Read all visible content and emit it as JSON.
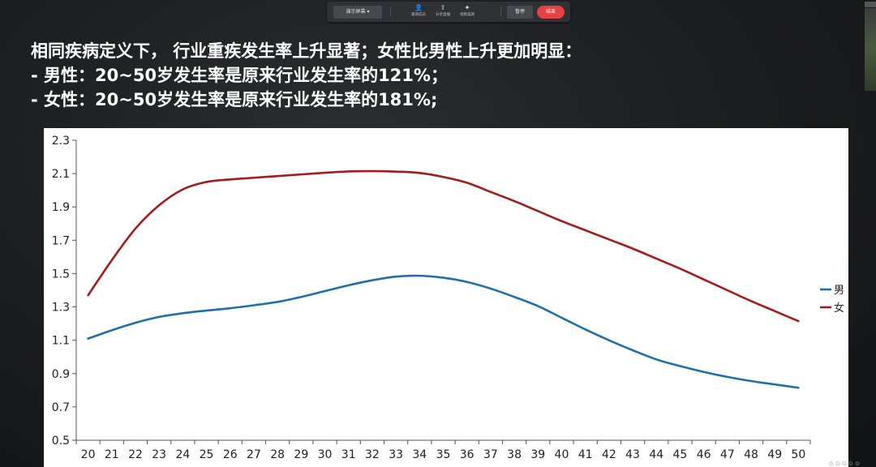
{
  "toolbar": {
    "share_screen_label": "演示屏幕 ▾",
    "tools": [
      {
        "icon": "person-plus-icon",
        "glyph": "👤",
        "label": "邀请成员"
      },
      {
        "icon": "share-icon",
        "glyph": "⇪",
        "label": "分享直播"
      },
      {
        "icon": "sparkle-icon",
        "glyph": "✦",
        "label": "视频美颜"
      }
    ],
    "pause_label": "暂停",
    "end_label": "结束"
  },
  "heading": {
    "line1": "相同疾病定义下， 行业重疾发生率上升显著；女性比男性上升更加明显：",
    "line2": "- 男性：20~50岁发生率是原来行业发生率的121%；",
    "line3": "- 女性：20~50岁发生率是原来行业发生率的181%;"
  },
  "colors": {
    "male": "#1f6fae",
    "female": "#a6191c"
  },
  "chart_data": {
    "type": "line",
    "title": "",
    "xlabel": "",
    "ylabel": "",
    "x": [
      20,
      21,
      22,
      23,
      24,
      25,
      26,
      27,
      28,
      29,
      30,
      31,
      32,
      33,
      34,
      35,
      36,
      37,
      38,
      39,
      40,
      41,
      42,
      43,
      44,
      45,
      46,
      47,
      48,
      49,
      50
    ],
    "ylim": [
      0.5,
      2.3
    ],
    "yticks": [
      0.5,
      0.7,
      0.9,
      1.1,
      1.3,
      1.5,
      1.7,
      1.9,
      2.1,
      2.3
    ],
    "legend_position": "right",
    "grid": false,
    "series": [
      {
        "name": "男",
        "color": "#1f6fae",
        "values": [
          1.11,
          1.16,
          1.205,
          1.24,
          1.262,
          1.278,
          1.292,
          1.31,
          1.33,
          1.36,
          1.395,
          1.43,
          1.46,
          1.482,
          1.487,
          1.475,
          1.45,
          1.41,
          1.36,
          1.305,
          1.235,
          1.165,
          1.1,
          1.04,
          0.985,
          0.945,
          0.91,
          0.88,
          0.855,
          0.835,
          0.815
        ]
      },
      {
        "name": "女",
        "color": "#a6191c",
        "values": [
          1.37,
          1.58,
          1.77,
          1.91,
          2.005,
          2.05,
          2.065,
          2.075,
          2.085,
          2.095,
          2.105,
          2.113,
          2.115,
          2.112,
          2.104,
          2.08,
          2.045,
          1.99,
          1.935,
          1.875,
          1.815,
          1.76,
          1.705,
          1.65,
          1.59,
          1.53,
          1.465,
          1.4,
          1.335,
          1.275,
          1.215
        ]
      }
    ]
  },
  "watermark": "⊙ ⊙ ⊙ ⊙ ⊙"
}
